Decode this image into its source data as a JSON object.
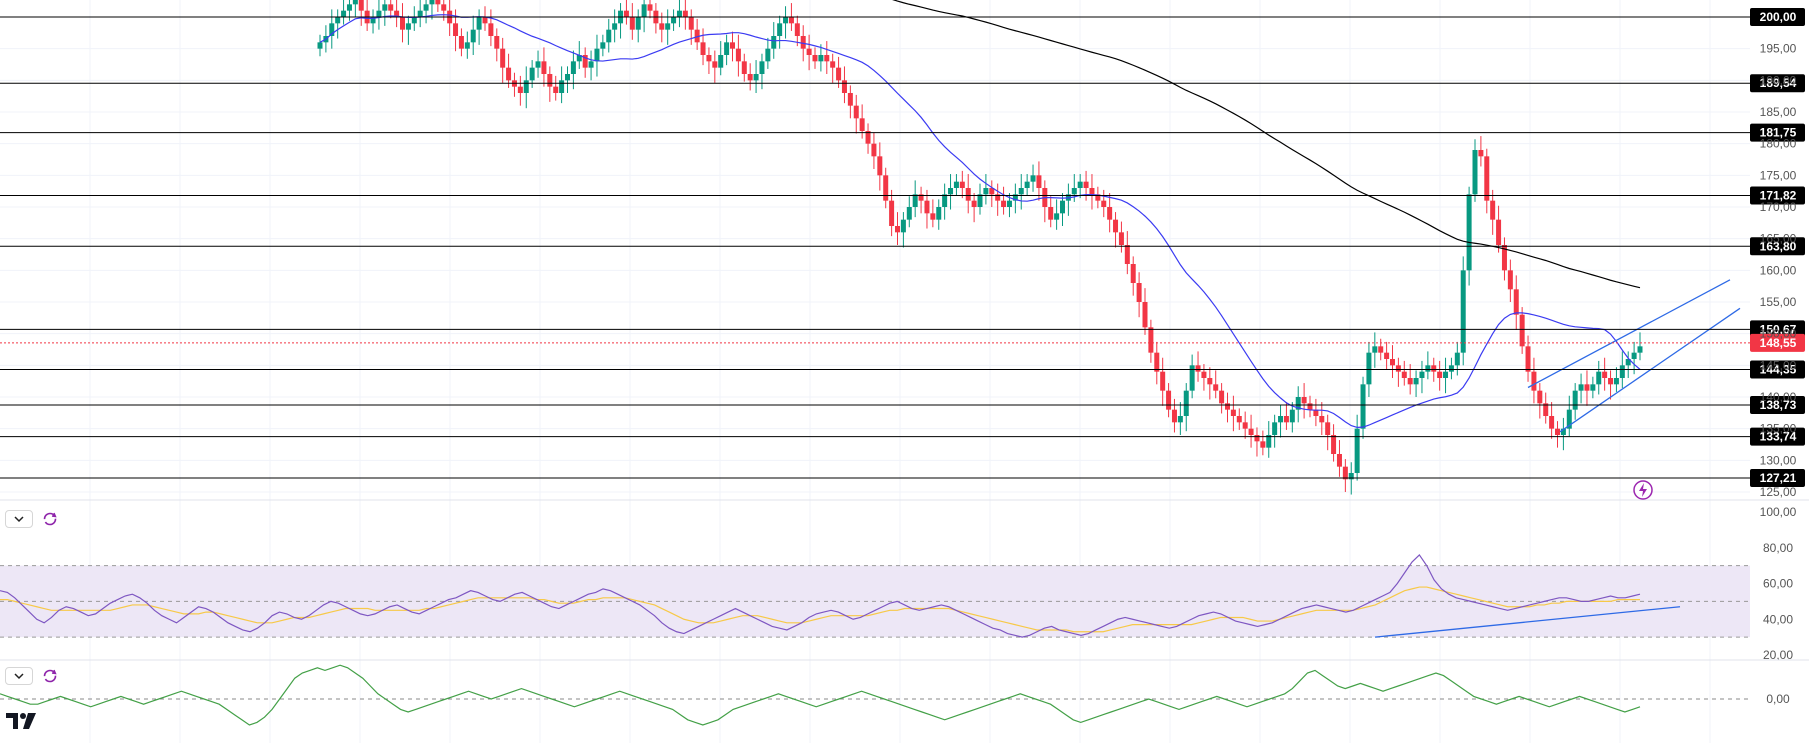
{
  "chart_data": [
    {
      "type": "candlestick",
      "title": "",
      "ylim": [
        124,
        201
      ],
      "y_ticks": [
        "195,00",
        "190,00",
        "185,00",
        "180,00",
        "175,00",
        "170,00",
        "165,00",
        "160,00",
        "155,00",
        "150,00",
        "145,00",
        "140,00",
        "135,00",
        "130,00",
        "125,00"
      ],
      "y_tick_values": [
        195,
        190,
        185,
        180,
        175,
        170,
        165,
        160,
        155,
        150,
        145,
        140,
        135,
        130,
        125
      ],
      "levels": [
        {
          "value": 200.0,
          "label": "200,00"
        },
        {
          "value": 189.54,
          "label": "189,54"
        },
        {
          "value": 181.75,
          "label": "181,75"
        },
        {
          "value": 171.82,
          "label": "171,82"
        },
        {
          "value": 163.8,
          "label": "163,80"
        },
        {
          "value": 150.67,
          "label": "150,67"
        },
        {
          "value": 144.35,
          "label": "144,35"
        },
        {
          "value": 138.73,
          "label": "138,73"
        },
        {
          "value": 133.74,
          "label": "133,74"
        },
        {
          "value": 127.21,
          "label": "127,21"
        }
      ],
      "last_price": {
        "value": 148.55,
        "label": "148,55"
      },
      "candles_close": [
        196,
        197,
        199,
        200,
        201,
        202,
        203,
        201,
        199,
        200,
        201,
        202,
        201,
        200,
        198,
        199,
        200,
        201,
        202,
        203,
        202,
        201,
        199,
        197,
        195,
        196,
        198,
        200,
        199,
        197,
        195,
        192,
        190,
        189,
        188,
        190,
        192,
        193,
        191,
        189,
        188,
        190,
        191,
        193,
        194,
        192,
        193,
        195,
        196,
        198,
        199,
        201,
        200,
        198,
        200,
        202,
        201,
        199,
        198,
        199,
        200,
        201,
        200,
        198,
        196,
        194,
        193,
        192,
        194,
        196,
        195,
        193,
        191,
        190,
        191,
        193,
        195,
        197,
        199,
        200,
        199,
        197,
        195,
        194,
        193,
        194,
        193,
        192,
        190,
        188,
        186,
        184,
        182,
        180,
        178,
        175,
        171,
        167,
        166,
        168,
        170,
        172,
        171,
        169,
        168,
        170,
        172,
        173,
        174,
        173,
        171,
        170,
        172,
        173,
        172,
        171,
        170,
        171,
        172,
        173,
        174,
        175,
        173,
        170,
        168,
        169,
        171,
        172,
        173,
        174,
        173,
        172,
        171,
        170,
        168,
        166,
        164,
        161,
        158,
        155,
        151,
        147,
        144,
        141,
        138,
        136,
        137,
        141,
        145,
        144,
        143,
        142,
        141,
        139,
        138,
        137,
        136,
        135,
        134,
        133,
        132,
        134,
        136,
        137,
        136,
        138,
        140,
        139,
        138,
        137,
        136,
        134,
        131,
        129,
        127,
        128,
        135,
        142,
        147,
        148,
        147,
        146,
        145,
        144,
        143,
        142,
        143,
        144,
        145,
        144,
        143,
        144,
        145,
        147,
        160,
        172,
        179,
        178,
        171,
        168,
        164,
        160,
        157,
        153,
        148,
        144,
        141,
        139,
        137,
        135,
        134,
        135,
        138,
        141,
        142,
        141,
        142,
        144,
        143,
        142,
        143,
        145,
        146,
        147,
        148
      ],
      "series": [
        {
          "name": "",
          "type": "sma",
          "color": "#3b3bf2"
        },
        {
          "name": "",
          "type": "sma",
          "color": "#000000"
        }
      ],
      "trend_channel_color": "#2e6ae6"
    },
    {
      "type": "line",
      "panel": "rsi",
      "ylim": [
        20,
        100
      ],
      "y_ticks": [
        "100,00",
        "80,00",
        "60,00",
        "40,00",
        "20,00"
      ],
      "y_tick_values": [
        100,
        80,
        60,
        40,
        20
      ],
      "bands": [
        70,
        30
      ],
      "midline": 50,
      "rsi": [
        56,
        55,
        52,
        48,
        44,
        40,
        38,
        41,
        45,
        47,
        46,
        44,
        42,
        43,
        46,
        49,
        51,
        53,
        54,
        52,
        49,
        45,
        42,
        40,
        38,
        41,
        44,
        47,
        46,
        44,
        41,
        38,
        36,
        34,
        33,
        35,
        38,
        42,
        44,
        43,
        41,
        40,
        42,
        45,
        48,
        50,
        49,
        47,
        45,
        43,
        42,
        43,
        45,
        47,
        48,
        46,
        44,
        43,
        45,
        47,
        49,
        51,
        52,
        54,
        56,
        55,
        53,
        51,
        50,
        52,
        54,
        55,
        53,
        51,
        49,
        47,
        46,
        48,
        50,
        52,
        54,
        55,
        57,
        56,
        54,
        52,
        50,
        48,
        45,
        42,
        38,
        35,
        33,
        32,
        34,
        36,
        38,
        40,
        42,
        44,
        46,
        44,
        42,
        40,
        38,
        36,
        35,
        34,
        36,
        38,
        41,
        43,
        44,
        45,
        44,
        42,
        40,
        41,
        43,
        45,
        47,
        49,
        50,
        48,
        46,
        45,
        46,
        47,
        48,
        47,
        45,
        43,
        41,
        39,
        37,
        35,
        34,
        32,
        31,
        30,
        31,
        33,
        35,
        36,
        34,
        33,
        32,
        31,
        32,
        34,
        36,
        38,
        40,
        41,
        40,
        39,
        38,
        37,
        36,
        35,
        36,
        38,
        40,
        42,
        43,
        44,
        43,
        41,
        39,
        38,
        37,
        36,
        37,
        38,
        40,
        42,
        44,
        46,
        47,
        48,
        47,
        46,
        45,
        44,
        45,
        47,
        49,
        51,
        53,
        55,
        60,
        66,
        72,
        76,
        70,
        62,
        57,
        54,
        52,
        51,
        50,
        49,
        48,
        47,
        46,
        45,
        46,
        47,
        48,
        49,
        50,
        51,
        52,
        52,
        51,
        50,
        50,
        51,
        52,
        53,
        52,
        52,
        53,
        54
      ],
      "rsi_ma": [
        51,
        51,
        50,
        49,
        48,
        47,
        46,
        45,
        45,
        45,
        45,
        45,
        45,
        45,
        45,
        45,
        46,
        47,
        48,
        48,
        48,
        47,
        46,
        45,
        44,
        43,
        43,
        43,
        44,
        44,
        43,
        42,
        41,
        40,
        39,
        38,
        38,
        38,
        39,
        40,
        41,
        41,
        41,
        42,
        43,
        44,
        45,
        46,
        46,
        46,
        46,
        45,
        45,
        45,
        45,
        45,
        45,
        45,
        46,
        46,
        47,
        48,
        49,
        50,
        51,
        52,
        52,
        52,
        52,
        52,
        52,
        52,
        52,
        51,
        51,
        50,
        49,
        49,
        49,
        50,
        51,
        51,
        52,
        52,
        52,
        52,
        51,
        50,
        49,
        48,
        46,
        44,
        42,
        40,
        39,
        38,
        38,
        38,
        39,
        40,
        41,
        42,
        42,
        42,
        41,
        40,
        39,
        38,
        38,
        38,
        39,
        40,
        41,
        42,
        42,
        42,
        42,
        42,
        42,
        43,
        44,
        45,
        45,
        46,
        46,
        46,
        46,
        46,
        46,
        46,
        45,
        44,
        43,
        42,
        41,
        40,
        39,
        38,
        37,
        36,
        35,
        34,
        34,
        34,
        34,
        34,
        33,
        33,
        33,
        33,
        33,
        34,
        35,
        36,
        37,
        37,
        37,
        37,
        37,
        37,
        37,
        37,
        37,
        38,
        39,
        40,
        41,
        41,
        41,
        41,
        40,
        39,
        39,
        39,
        40,
        41,
        42,
        43,
        44,
        45,
        45,
        45,
        45,
        45,
        45,
        46,
        47,
        48,
        50,
        52,
        54,
        56,
        57,
        58,
        58,
        57,
        56,
        55,
        54,
        53,
        52,
        51,
        50,
        49,
        48,
        47,
        47,
        47,
        47,
        48,
        48,
        49,
        49,
        50,
        50,
        50,
        50,
        50,
        50,
        50,
        51,
        51,
        51,
        51
      ]
    },
    {
      "type": "line",
      "panel": "oscillator",
      "y_ticks": [
        "0,00"
      ],
      "y_tick_values": [
        0
      ],
      "values": [
        2,
        1,
        0,
        -1,
        -2,
        -2,
        -1,
        0,
        1,
        0,
        -1,
        -2,
        -3,
        -2,
        -1,
        0,
        1,
        0,
        -1,
        -2,
        -1,
        0,
        1,
        2,
        3,
        2,
        1,
        0,
        -1,
        -2,
        -4,
        -6,
        -8,
        -10,
        -9,
        -7,
        -4,
        0,
        4,
        8,
        10,
        11,
        12,
        11,
        12,
        13,
        12,
        10,
        8,
        5,
        2,
        0,
        -2,
        -4,
        -5,
        -4,
        -3,
        -2,
        -1,
        0,
        1,
        2,
        3,
        2,
        1,
        0,
        1,
        2,
        3,
        4,
        3,
        2,
        1,
        0,
        -1,
        -2,
        -3,
        -2,
        -1,
        0,
        1,
        2,
        3,
        2,
        1,
        0,
        -1,
        -2,
        -3,
        -4,
        -6,
        -8,
        -9,
        -10,
        -9,
        -8,
        -6,
        -4,
        -3,
        -2,
        -1,
        0,
        1,
        2,
        1,
        0,
        -1,
        -2,
        -3,
        -2,
        -1,
        0,
        1,
        2,
        3,
        2,
        1,
        0,
        -1,
        -2,
        -3,
        -4,
        -5,
        -6,
        -7,
        -8,
        -7,
        -6,
        -5,
        -4,
        -3,
        -2,
        -1,
        0,
        1,
        2,
        1,
        0,
        -1,
        -2,
        -4,
        -6,
        -8,
        -9,
        -8,
        -7,
        -6,
        -5,
        -4,
        -3,
        -2,
        -1,
        0,
        -1,
        -2,
        -3,
        -4,
        -3,
        -2,
        -1,
        0,
        1,
        0,
        -1,
        -2,
        -3,
        -2,
        -1,
        0,
        1,
        2,
        4,
        7,
        10,
        11,
        9,
        7,
        5,
        4,
        5,
        6,
        5,
        4,
        3,
        4,
        5,
        6,
        7,
        8,
        9,
        10,
        9,
        7,
        5,
        3,
        1,
        0,
        -1,
        -2,
        -1,
        0,
        1,
        0,
        -1,
        -2,
        -3,
        -2,
        -1,
        0,
        1,
        0,
        -1,
        -2,
        -3,
        -4,
        -5,
        -4,
        -3
      ]
    }
  ],
  "ui": {
    "collapse_icon": "chevron-down-icon",
    "refresh_icon": "refresh-icon",
    "alert_icon": "lightning-icon",
    "logo": "TV"
  },
  "colors": {
    "up": "#089981",
    "down": "#f23645",
    "level_label_bg": "#000000",
    "price_label_bg": "#f23645",
    "rsi_line": "#7e57c2",
    "rsi_ma": "#f7c948",
    "rsi_band": "#ede7f6",
    "osc_line": "#43a047"
  }
}
